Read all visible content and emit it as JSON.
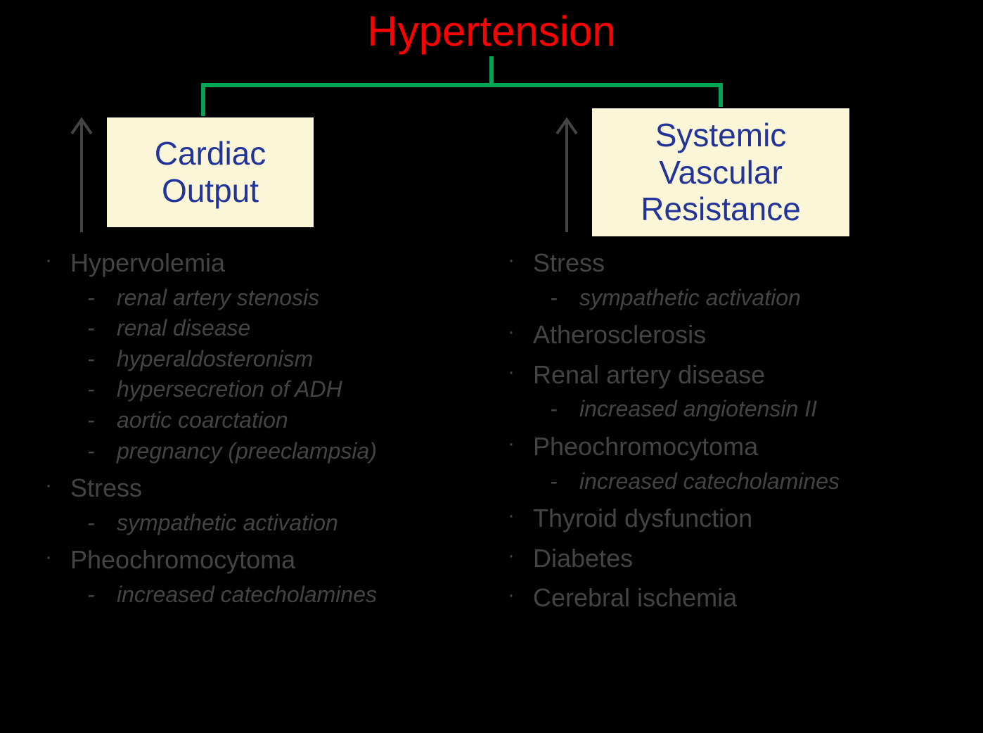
{
  "type": "flowchart",
  "background_color": "#000000",
  "title": {
    "text": "Hypertension",
    "color": "#ff0000",
    "fontsize": 60
  },
  "connector": {
    "color": "#00a651",
    "thickness": 6
  },
  "boxes": {
    "left": {
      "label": "Cardiac\nOutput",
      "bg_color": "#fcf6d8",
      "border_color": "#000000",
      "text_color": "#223399",
      "fontsize": 46
    },
    "right": {
      "label": "Systemic\nVascular\nResistance",
      "bg_color": "#fcf6d8",
      "border_color": "#000000",
      "text_color": "#223399",
      "fontsize": 46
    }
  },
  "arrow": {
    "stroke_color": "#444444",
    "stroke_width": 4
  },
  "lists": {
    "bullet_color": "#444444",
    "bullet_fontsize": 36,
    "sub_fontsize": 32,
    "left": [
      {
        "label": "Hypervolemia",
        "subs": [
          "renal artery stenosis",
          "renal disease",
          "hyperaldosteronism",
          "hypersecretion of ADH",
          "aortic coarctation",
          "pregnancy (preeclampsia)"
        ]
      },
      {
        "label": "Stress",
        "subs": [
          "sympathetic activation"
        ]
      },
      {
        "label": "Pheochromocytoma",
        "subs": [
          "increased catecholamines"
        ]
      }
    ],
    "right": [
      {
        "label": "Stress",
        "subs": [
          "sympathetic activation"
        ]
      },
      {
        "label": "Atherosclerosis",
        "subs": []
      },
      {
        "label": "Renal artery disease",
        "subs": [
          "increased angiotensin II"
        ]
      },
      {
        "label": "Pheochromocytoma",
        "subs": [
          "increased catecholamines"
        ]
      },
      {
        "label": "Thyroid dysfunction",
        "subs": []
      },
      {
        "label": "Diabetes",
        "subs": []
      },
      {
        "label": "Cerebral ischemia",
        "subs": []
      }
    ]
  }
}
